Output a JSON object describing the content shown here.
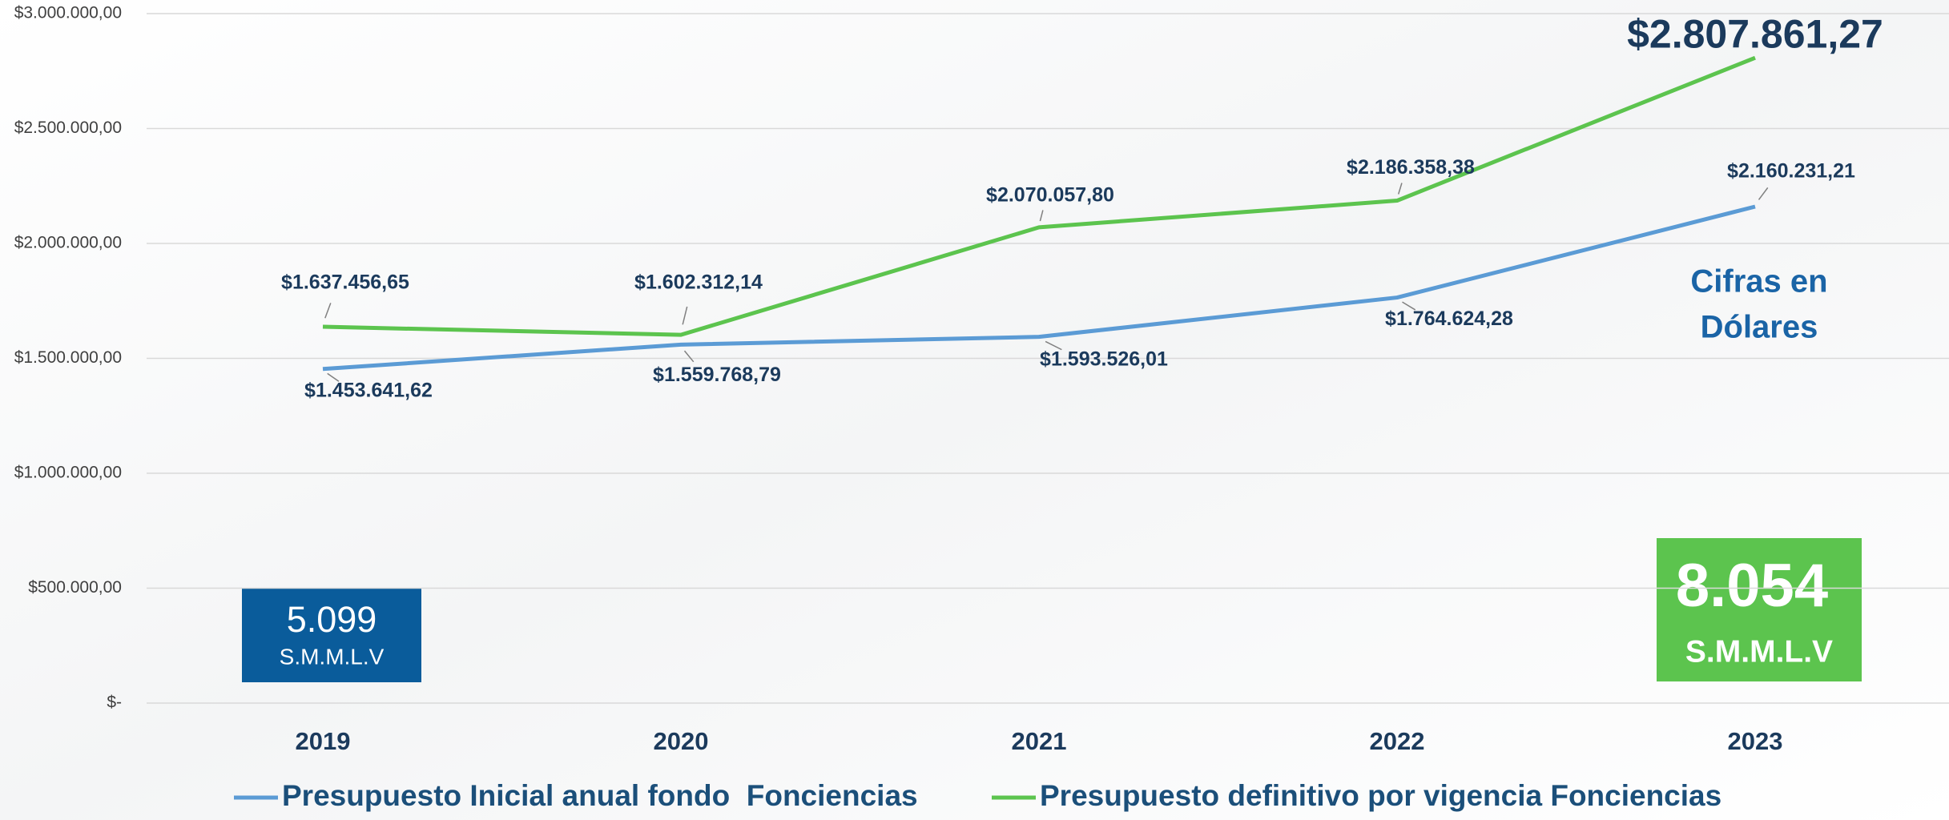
{
  "chart_data": {
    "type": "line",
    "categories": [
      "2019",
      "2020",
      "2021",
      "2022",
      "2023"
    ],
    "series": [
      {
        "name": "Presupuesto Inicial anual fondo  Fonciencias",
        "color": "#5b9bd5",
        "values": [
          1453641.62,
          1559768.79,
          1593526.01,
          1764624.28,
          2160231.21
        ],
        "value_labels": [
          "$1.453.641,62",
          "$1.559.768,79",
          "$1.593.526,01",
          "$1.764.624,28",
          "$2.160.231,21"
        ]
      },
      {
        "name": "Presupuesto definitivo por vigencia Fonciencias",
        "color": "#5cc44e",
        "values": [
          1637456.65,
          1602312.14,
          2070057.8,
          2186358.38,
          2807861.27
        ],
        "value_labels": [
          "$1.637.456,65",
          "$1.602.312,14",
          "$2.070.057,80",
          "$2.186.358,38",
          "$2.807.861,27"
        ]
      }
    ],
    "ylim": [
      0,
      3000000
    ],
    "yticks": [
      {
        "value": 0,
        "label": "$-"
      },
      {
        "value": 500000,
        "label": "$500.000,00"
      },
      {
        "value": 1000000,
        "label": "$1.000.000,00"
      },
      {
        "value": 1500000,
        "label": "$1.500.000,00"
      },
      {
        "value": 2000000,
        "label": "$2.000.000,00"
      },
      {
        "value": 2500000,
        "label": "$2.500.000,00"
      },
      {
        "value": 3000000,
        "label": "$3.000.000,00"
      }
    ],
    "grid": true,
    "legend": "bottom",
    "annotations": [
      "Cifras en",
      "Dólares",
      "5.099",
      "S.M.M.L.V",
      "8.054",
      "S.M.M.L.V"
    ]
  }
}
